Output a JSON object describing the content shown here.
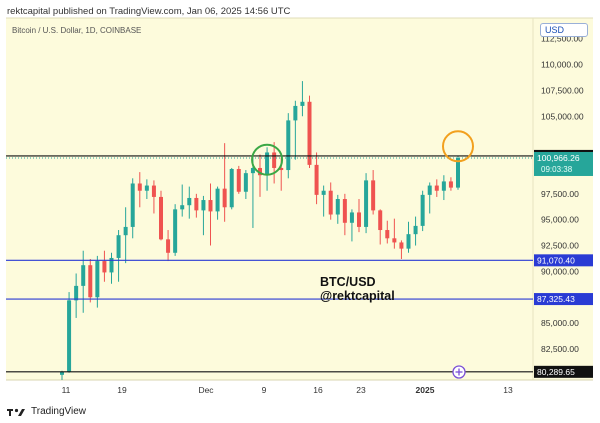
{
  "header": {
    "published": "rektcapital published on TradingView.com, Jan 06, 2025 14:56 UTC"
  },
  "symbol_line": "Bitcoin / U.S. Dollar, 1D, COINBASE",
  "currency_badge": "USD",
  "annotation": {
    "line1": "BTC/USD",
    "line2": "@rektcapital"
  },
  "footer": {
    "brand": "TradingView"
  },
  "colors": {
    "bg": "#fdfbdc",
    "up": "#26a69a",
    "down": "#ef5350",
    "blue_line": "#2a3bd4",
    "green_circle": "#3aa845",
    "orange_circle": "#f2a01e"
  },
  "chart_data": {
    "type": "candlestick",
    "title": "Bitcoin / U.S. Dollar, 1D, COINBASE",
    "x_ticks": [
      "11",
      "19",
      "Dec",
      "9",
      "16",
      "23",
      "2025",
      "13"
    ],
    "y_ticks": [
      "112,500.00",
      "110,000.00",
      "107,500.00",
      "105,000.00",
      "97,500.00",
      "95,000.00",
      "92,500.00",
      "90,000.00",
      "85,000.00",
      "82,500.00"
    ],
    "ylim": [
      79500,
      114500
    ],
    "horizontal_levels": [
      {
        "value": 101165.33,
        "label": "101,165.33",
        "style": "black"
      },
      {
        "value": 91070.4,
        "label": "91,070.40",
        "style": "blue"
      },
      {
        "value": 87325.43,
        "label": "87,325.43",
        "style": "blue"
      },
      {
        "value": 80289.65,
        "label": "80,289.65",
        "style": "black"
      }
    ],
    "last_price": {
      "value": 100966.26,
      "label": "100,966.26",
      "countdown": "09:03:38"
    },
    "candles": [
      [
        80000,
        80400,
        79500,
        80300
      ],
      [
        80300,
        88000,
        80200,
        87200
      ],
      [
        87200,
        89800,
        85500,
        88600
      ],
      [
        88600,
        92000,
        86000,
        90600
      ],
      [
        90600,
        91200,
        87000,
        87500
      ],
      [
        87500,
        91500,
        86500,
        91000
      ],
      [
        91000,
        92000,
        89000,
        89900
      ],
      [
        89900,
        91800,
        88800,
        91300
      ],
      [
        91300,
        94000,
        89000,
        93500
      ],
      [
        93500,
        96200,
        90800,
        94300
      ],
      [
        94300,
        99000,
        93200,
        98500
      ],
      [
        98500,
        99600,
        96200,
        97800
      ],
      [
        97800,
        98900,
        97000,
        98300
      ],
      [
        98300,
        98800,
        95600,
        97200
      ],
      [
        97200,
        97800,
        93000,
        93100
      ],
      [
        93100,
        94000,
        91000,
        91800
      ],
      [
        91800,
        96500,
        91500,
        96000
      ],
      [
        96000,
        98400,
        95300,
        96400
      ],
      [
        96400,
        98200,
        95100,
        97100
      ],
      [
        97100,
        97500,
        95200,
        95900
      ],
      [
        95900,
        97300,
        93500,
        96900
      ],
      [
        96900,
        98500,
        92500,
        95800
      ],
      [
        95800,
        98200,
        95000,
        98000
      ],
      [
        98000,
        102400,
        94800,
        96200
      ],
      [
        96200,
        100000,
        96000,
        99900
      ],
      [
        99900,
        100200,
        97500,
        97700
      ],
      [
        97700,
        99800,
        97000,
        99500
      ],
      [
        99500,
        101100,
        94200,
        100000
      ],
      [
        100000,
        101300,
        97200,
        99300
      ],
      [
        99300,
        102000,
        97800,
        101500
      ],
      [
        101500,
        102500,
        98500,
        100000
      ],
      [
        100000,
        101000,
        97800,
        99800
      ],
      [
        99800,
        105300,
        99000,
        104600
      ],
      [
        104600,
        106500,
        100800,
        106000
      ],
      [
        106000,
        108400,
        105000,
        106400
      ],
      [
        106400,
        107000,
        100000,
        100300
      ],
      [
        100300,
        101500,
        96500,
        97400
      ],
      [
        97400,
        98300,
        95300,
        97800
      ],
      [
        97800,
        98600,
        95000,
        95500
      ],
      [
        95500,
        97400,
        94600,
        97000
      ],
      [
        97000,
        97500,
        93500,
        94700
      ],
      [
        94700,
        96000,
        92900,
        95700
      ],
      [
        95700,
        97000,
        93800,
        94300
      ],
      [
        94300,
        99500,
        93700,
        98800
      ],
      [
        98800,
        99800,
        95500,
        95900
      ],
      [
        95900,
        96000,
        92600,
        94000
      ],
      [
        94000,
        94900,
        92700,
        93200
      ],
      [
        93200,
        95100,
        92200,
        92800
      ],
      [
        92800,
        93000,
        91200,
        92200
      ],
      [
        92200,
        94800,
        91800,
        93600
      ],
      [
        93600,
        95300,
        92500,
        94400
      ],
      [
        94400,
        97800,
        93900,
        97400
      ],
      [
        97400,
        98600,
        95600,
        98300
      ],
      [
        98300,
        98900,
        97200,
        97800
      ],
      [
        97800,
        99300,
        96900,
        98700
      ],
      [
        98700,
        99100,
        97800,
        98100
      ],
      [
        98100,
        101200,
        97900,
        100966
      ]
    ]
  }
}
